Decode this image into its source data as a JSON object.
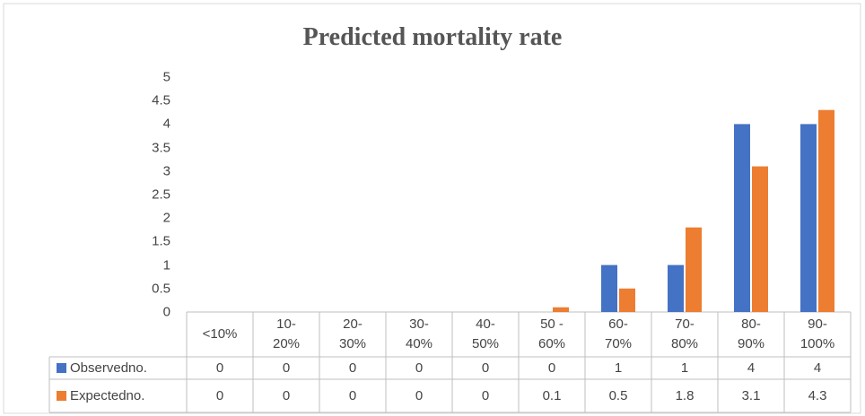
{
  "chart_data": {
    "type": "bar",
    "title": "Predicted mortality rate",
    "categories": [
      "<10%",
      "10-\n20%",
      "20-\n30%",
      "30-\n40%",
      "40-\n50%",
      "50 -\n60%",
      "60-\n70%",
      "70-\n80%",
      "80-\n90%",
      "90-\n100%"
    ],
    "series": [
      {
        "name": "Observedno.",
        "color": "#4472c4",
        "values": [
          0,
          0,
          0,
          0,
          0,
          0,
          1,
          1,
          4,
          4
        ]
      },
      {
        "name": "Expectedno.",
        "color": "#ed7d31",
        "values": [
          0,
          0,
          0,
          0,
          0,
          0.1,
          0.5,
          1.8,
          3.1,
          4.3
        ]
      }
    ],
    "ylim": [
      0,
      5
    ],
    "yticks": [
      0,
      0.5,
      1,
      1.5,
      2,
      2.5,
      3,
      3.5,
      4,
      4.5,
      5
    ],
    "grid": false
  }
}
